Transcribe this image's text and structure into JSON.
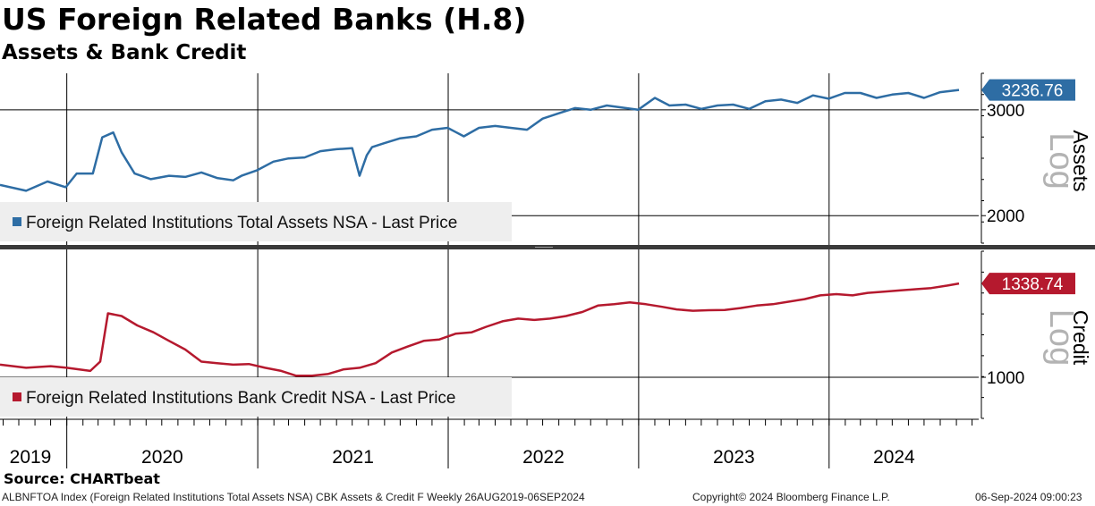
{
  "header": {
    "title": "US Foreign Related Banks (H.8)",
    "subtitle": "Assets & Bank Credit"
  },
  "chart_data": [
    {
      "type": "line",
      "panel": "assets",
      "axis_label": "Assets",
      "scale_label": "Log",
      "log_scale": true,
      "ylim": [
        1800,
        3450
      ],
      "yticks": [
        2000,
        3000
      ],
      "xlim": [
        "2019-08-26",
        "2024-09-06"
      ],
      "x_tick_labels": [
        "2019",
        "2020",
        "2021",
        "2022",
        "2023",
        "2024"
      ],
      "grid": true,
      "legend_position": "bottom-left",
      "last_price_label": "3236.76",
      "series": [
        {
          "name": "Foreign Related Institutions Total Assets NSA - Last Price",
          "color": "#2e6da4",
          "x": [
            "2019-08-26",
            "2019-10-15",
            "2019-11-25",
            "2019-12-30",
            "2020-01-20",
            "2020-02-20",
            "2020-03-09",
            "2020-03-30",
            "2020-04-15",
            "2020-05-10",
            "2020-06-10",
            "2020-07-15",
            "2020-08-15",
            "2020-09-15",
            "2020-10-15",
            "2020-11-15",
            "2020-12-01",
            "2020-12-31",
            "2021-01-31",
            "2021-03-01",
            "2021-04-01",
            "2021-05-01",
            "2021-06-01",
            "2021-07-01",
            "2021-07-15",
            "2021-07-29",
            "2021-08-08",
            "2021-09-01",
            "2021-10-01",
            "2021-11-01",
            "2021-12-01",
            "2021-12-31",
            "2022-01-31",
            "2022-03-01",
            "2022-04-01",
            "2022-05-01",
            "2022-06-01",
            "2022-07-01",
            "2022-08-01",
            "2022-09-01",
            "2022-10-01",
            "2022-11-01",
            "2022-12-31",
            "2023-02-01",
            "2023-03-01",
            "2023-04-01",
            "2023-05-01",
            "2023-06-01",
            "2023-07-01",
            "2023-08-01",
            "2023-09-01",
            "2023-10-01",
            "2023-11-01",
            "2023-12-01",
            "2023-12-31",
            "2024-01-31",
            "2024-03-01",
            "2024-04-01",
            "2024-05-01",
            "2024-06-01",
            "2024-07-01",
            "2024-08-01",
            "2024-09-06"
          ],
          "values": [
            2250,
            2200,
            2280,
            2230,
            2350,
            2350,
            2700,
            2750,
            2550,
            2350,
            2300,
            2330,
            2320,
            2360,
            2310,
            2290,
            2330,
            2380,
            2460,
            2490,
            2500,
            2560,
            2580,
            2590,
            2330,
            2520,
            2600,
            2640,
            2690,
            2710,
            2780,
            2800,
            2710,
            2800,
            2820,
            2800,
            2780,
            2900,
            2960,
            3020,
            3000,
            3050,
            3000,
            3140,
            3050,
            3060,
            3010,
            3050,
            3060,
            3010,
            3100,
            3120,
            3080,
            3170,
            3130,
            3200,
            3200,
            3140,
            3180,
            3200,
            3140,
            3210,
            3236.76
          ]
        }
      ]
    },
    {
      "type": "line",
      "panel": "credit",
      "axis_label": "Credit",
      "scale_label": "Log",
      "log_scale": true,
      "ylim": [
        880,
        1480
      ],
      "yticks": [
        1000
      ],
      "xlim": [
        "2019-08-26",
        "2024-09-06"
      ],
      "x_tick_labels": [
        "2019",
        "2020",
        "2021",
        "2022",
        "2023",
        "2024"
      ],
      "grid": true,
      "legend_position": "bottom-left",
      "last_price_label": "1338.74",
      "series": [
        {
          "name": "Foreign Related Institutions Bank Credit NSA - Last Price",
          "color": "#b5192e",
          "x": [
            "2019-08-26",
            "2019-10-15",
            "2019-12-01",
            "2020-01-01",
            "2020-02-15",
            "2020-03-05",
            "2020-03-20",
            "2020-04-15",
            "2020-05-15",
            "2020-06-15",
            "2020-07-15",
            "2020-08-15",
            "2020-09-15",
            "2020-10-15",
            "2020-11-15",
            "2020-12-15",
            "2021-01-15",
            "2021-02-15",
            "2021-03-15",
            "2021-04-15",
            "2021-05-15",
            "2021-06-15",
            "2021-07-15",
            "2021-08-15",
            "2021-09-15",
            "2021-10-15",
            "2021-11-15",
            "2021-12-15",
            "2022-01-15",
            "2022-02-15",
            "2022-03-15",
            "2022-04-15",
            "2022-05-15",
            "2022-06-15",
            "2022-07-15",
            "2022-08-15",
            "2022-09-15",
            "2022-10-15",
            "2022-11-15",
            "2022-12-15",
            "2023-01-15",
            "2023-02-15",
            "2023-03-15",
            "2023-04-15",
            "2023-05-15",
            "2023-06-15",
            "2023-07-15",
            "2023-08-15",
            "2023-09-15",
            "2023-10-15",
            "2023-11-15",
            "2023-12-15",
            "2024-01-15",
            "2024-02-15",
            "2024-03-15",
            "2024-04-15",
            "2024-05-15",
            "2024-06-15",
            "2024-07-15",
            "2024-08-15",
            "2024-09-06"
          ],
          "values": [
            1040,
            1030,
            1035,
            1030,
            1020,
            1050,
            1220,
            1210,
            1175,
            1150,
            1120,
            1090,
            1050,
            1045,
            1040,
            1042,
            1030,
            1020,
            1005,
            1005,
            1010,
            1025,
            1030,
            1045,
            1080,
            1100,
            1120,
            1125,
            1145,
            1150,
            1170,
            1190,
            1200,
            1195,
            1200,
            1210,
            1225,
            1250,
            1255,
            1262,
            1255,
            1245,
            1235,
            1230,
            1232,
            1233,
            1240,
            1250,
            1255,
            1265,
            1275,
            1290,
            1295,
            1290,
            1300,
            1305,
            1310,
            1315,
            1320,
            1330,
            1338.74
          ]
        }
      ]
    }
  ],
  "footer": {
    "source": "Source: CHARTbeat",
    "index_info": "ALBNFTOA Index (Foreign Related Institutions Total Assets NSA) CBK Assets & Credit F  Weekly 26AUG2019-06SEP2024",
    "copyright": "Copyright© 2024 Bloomberg Finance L.P.",
    "timestamp": "06-Sep-2024 09:00:23"
  }
}
